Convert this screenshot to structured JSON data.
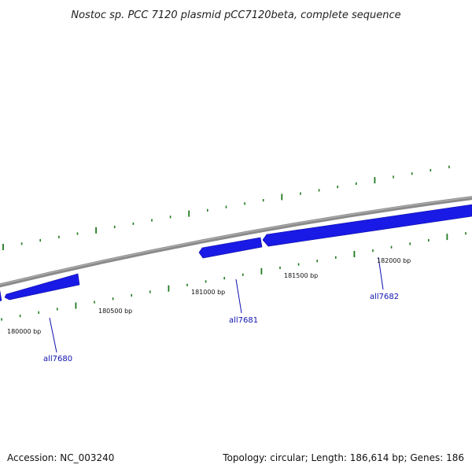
{
  "title": "Nostoc sp. PCC 7120 plasmid pCC7120beta, complete sequence",
  "footer": {
    "accession": "Accession: NC_003240",
    "summary": "Topology: circular; Length: 186,614 bp; Genes: 186"
  },
  "colors": {
    "backbone": "#8a8a8a",
    "ticks": "#1f7a1f",
    "gene": "#1a1ae6",
    "gene_label": "#1010b0",
    "leader": "#1010b0"
  },
  "position_labels": [
    "180000 bp",
    "180500 bp",
    "181000 bp",
    "181500 bp",
    "182000 bp"
  ],
  "genes": [
    {
      "name": "all7680",
      "strand": "plus"
    },
    {
      "name": "all7681",
      "strand": "plus"
    },
    {
      "name": "all7682",
      "strand": "plus"
    }
  ]
}
